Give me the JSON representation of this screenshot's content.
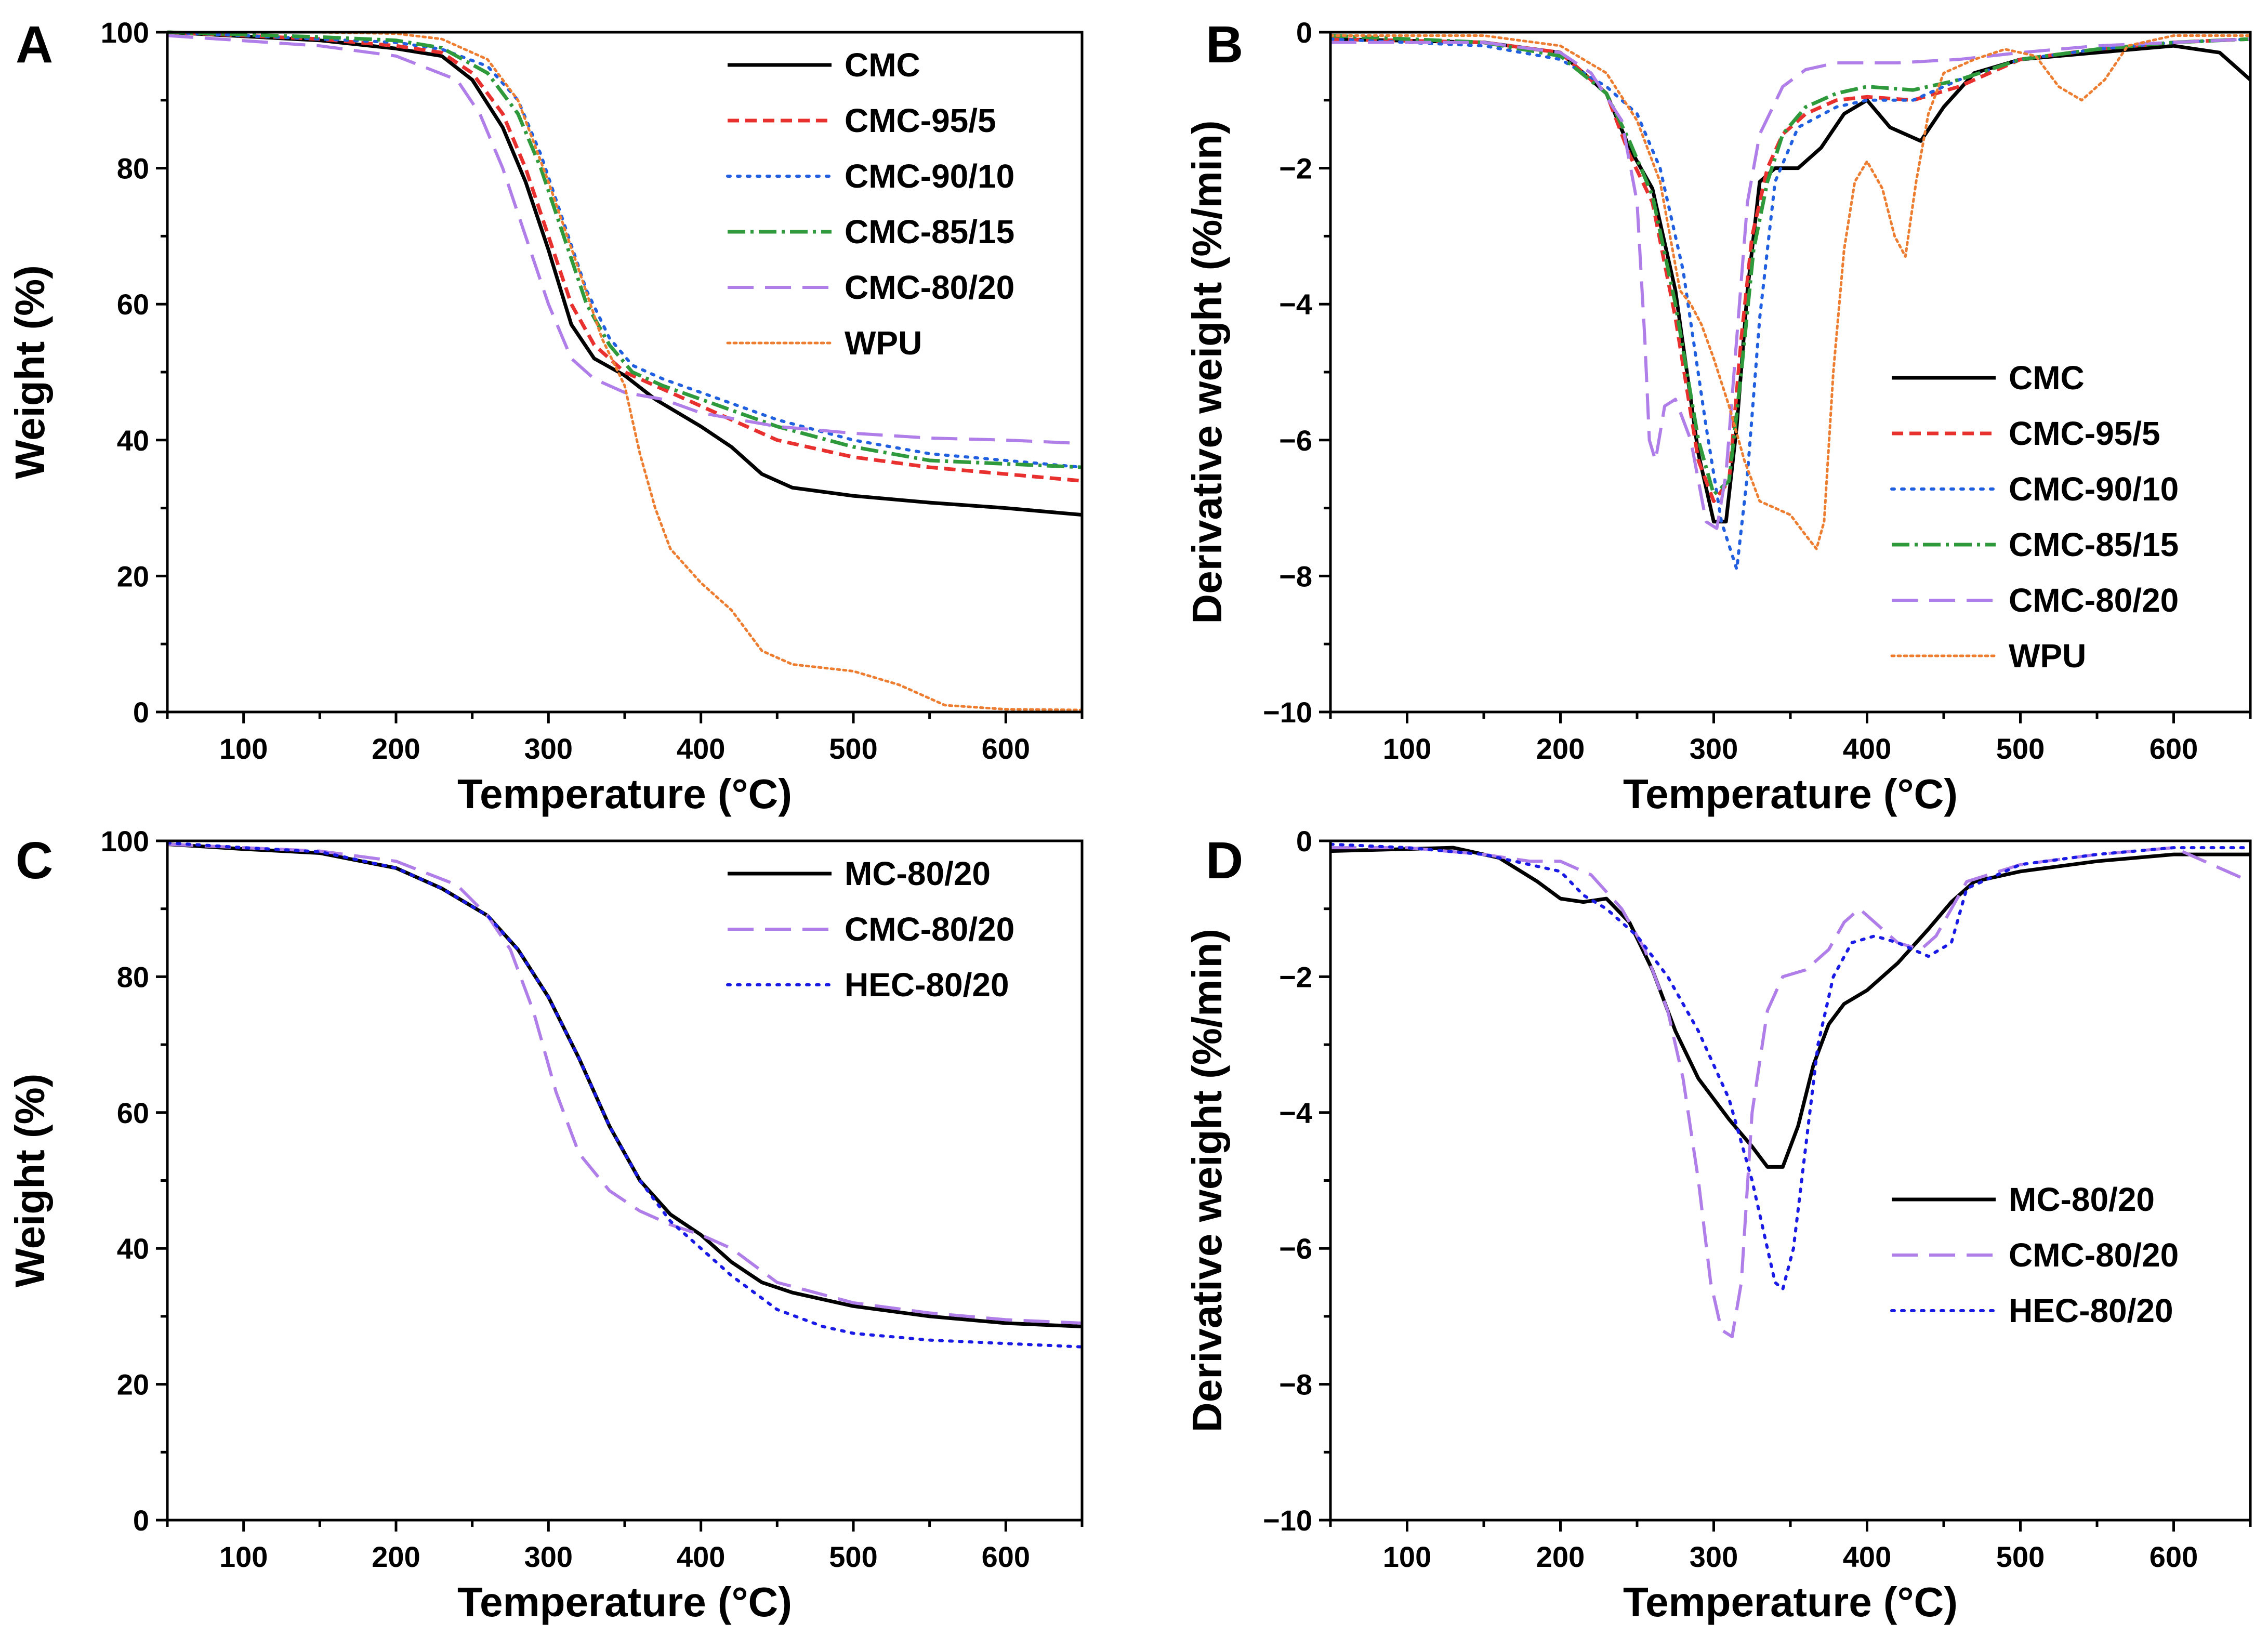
{
  "figure": {
    "colors": {
      "CMC": "#000000",
      "MC": "#000000",
      "CMC-95/5": "#e8302e",
      "CMC-90/10": "#1f5fe0",
      "CMC-85/15": "#2e9a3c",
      "CMC-80/20": "#b07ee8",
      "WPU": "#ed7d31",
      "HEC": "#1a1ae6"
    }
  },
  "chart_data": [
    {
      "panel": "A",
      "type": "line",
      "xlabel": "Temperature (°C)",
      "ylabel": "Weight (%)",
      "xlim": [
        50,
        650
      ],
      "ylim": [
        0,
        100
      ],
      "xticks": [
        100,
        200,
        300,
        400,
        500,
        600
      ],
      "yticks": [
        0,
        20,
        40,
        60,
        80,
        100
      ],
      "legend_position": "top-right",
      "series": [
        {
          "name": "CMC",
          "style": "solid",
          "color": "#000000",
          "x": [
            50,
            150,
            200,
            230,
            250,
            270,
            285,
            300,
            315,
            330,
            350,
            370,
            400,
            420,
            440,
            460,
            500,
            550,
            600,
            650
          ],
          "y": [
            100,
            98.8,
            97.6,
            96.5,
            93,
            86,
            78,
            68,
            57,
            52,
            49.5,
            46,
            42,
            39,
            35,
            33,
            31.8,
            30.8,
            30,
            29
          ]
        },
        {
          "name": "CMC-95/5",
          "style": "dashed",
          "color": "#e8302e",
          "x": [
            50,
            150,
            200,
            230,
            250,
            270,
            285,
            300,
            315,
            330,
            350,
            370,
            400,
            450,
            500,
            550,
            600,
            650
          ],
          "y": [
            100,
            99,
            98,
            97,
            94,
            88,
            80,
            70,
            60,
            54,
            50,
            48,
            45,
            40,
            37.5,
            36,
            35,
            34
          ]
        },
        {
          "name": "CMC-90/10",
          "style": "dotted",
          "color": "#1f5fe0",
          "x": [
            50,
            150,
            200,
            230,
            260,
            280,
            295,
            310,
            325,
            340,
            355,
            375,
            400,
            450,
            500,
            550,
            600,
            650
          ],
          "y": [
            100,
            99,
            98.5,
            97.5,
            95,
            90,
            82,
            72,
            62,
            55,
            51,
            49,
            47,
            43,
            40,
            38,
            37,
            36
          ]
        },
        {
          "name": "CMC-85/15",
          "style": "dashdot",
          "color": "#2e9a3c",
          "x": [
            50,
            150,
            200,
            230,
            260,
            280,
            295,
            310,
            325,
            340,
            355,
            375,
            400,
            450,
            500,
            550,
            600,
            650
          ],
          "y": [
            100,
            99.3,
            98.8,
            97.7,
            94,
            88,
            80,
            70,
            60,
            54,
            50,
            48,
            46,
            42,
            39,
            37,
            36.5,
            36
          ]
        },
        {
          "name": "CMC-80/20",
          "style": "longdash",
          "color": "#b07ee8",
          "x": [
            50,
            150,
            200,
            240,
            255,
            270,
            285,
            300,
            315,
            330,
            350,
            375,
            400,
            450,
            500,
            550,
            600,
            650
          ],
          "y": [
            99.5,
            98,
            96.5,
            93,
            88,
            80,
            70,
            60,
            52,
            49,
            47,
            46,
            44,
            42,
            41,
            40.3,
            40,
            39.5
          ]
        },
        {
          "name": "WPU",
          "style": "densedot",
          "color": "#ed7d31",
          "x": [
            50,
            150,
            200,
            230,
            260,
            280,
            300,
            320,
            335,
            350,
            360,
            370,
            380,
            400,
            420,
            440,
            460,
            500,
            530,
            560,
            600,
            650
          ],
          "y": [
            100,
            100,
            99.8,
            99,
            96,
            90,
            78,
            65,
            55,
            48,
            38,
            30,
            24,
            19,
            15,
            9,
            7,
            6,
            4,
            1,
            0.4,
            0.3
          ]
        }
      ]
    },
    {
      "panel": "B",
      "type": "line",
      "xlabel": "Temperature (°C)",
      "ylabel": "Derivative weight (%/min)",
      "xlim": [
        50,
        650
      ],
      "ylim": [
        -10,
        0
      ],
      "xticks": [
        100,
        200,
        300,
        400,
        500,
        600
      ],
      "yticks": [
        -10,
        -8,
        -6,
        -4,
        -2,
        0
      ],
      "legend_position": "lower-right",
      "series": [
        {
          "name": "CMC",
          "style": "solid",
          "color": "#000000",
          "x": [
            50,
            150,
            200,
            230,
            245,
            260,
            275,
            290,
            300,
            308,
            315,
            322,
            330,
            340,
            355,
            370,
            385,
            400,
            415,
            435,
            450,
            470,
            500,
            550,
            600,
            630,
            650
          ],
          "y": [
            -0.1,
            -0.15,
            -0.3,
            -0.9,
            -1.7,
            -2.3,
            -3.8,
            -6.2,
            -7.2,
            -7.2,
            -5.8,
            -3.8,
            -2.2,
            -2.0,
            -2.0,
            -1.7,
            -1.2,
            -1.0,
            -1.4,
            -1.6,
            -1.1,
            -0.6,
            -0.4,
            -0.3,
            -0.2,
            -0.3,
            -0.7
          ]
        },
        {
          "name": "CMC-95/5",
          "style": "dashed",
          "color": "#e8302e",
          "x": [
            50,
            150,
            200,
            230,
            245,
            260,
            275,
            290,
            300,
            310,
            318,
            325,
            335,
            345,
            360,
            380,
            400,
            430,
            460,
            500,
            550,
            600,
            650
          ],
          "y": [
            -0.1,
            -0.15,
            -0.3,
            -0.9,
            -1.8,
            -2.5,
            -4.2,
            -6.3,
            -6.9,
            -6.6,
            -4.5,
            -3.0,
            -2.0,
            -1.5,
            -1.2,
            -1.0,
            -0.95,
            -1.0,
            -0.8,
            -0.4,
            -0.25,
            -0.15,
            -0.1
          ]
        },
        {
          "name": "CMC-90/10",
          "style": "dotted",
          "color": "#1f5fe0",
          "x": [
            50,
            150,
            200,
            230,
            250,
            265,
            280,
            295,
            305,
            315,
            322,
            330,
            340,
            355,
            380,
            400,
            430,
            460,
            500,
            550,
            600,
            650
          ],
          "y": [
            -0.1,
            -0.2,
            -0.4,
            -0.8,
            -1.2,
            -2.0,
            -3.5,
            -5.8,
            -7.2,
            -7.9,
            -6.5,
            -4.2,
            -2.2,
            -1.4,
            -1.1,
            -1.0,
            -1.0,
            -0.7,
            -0.4,
            -0.25,
            -0.15,
            -0.1
          ]
        },
        {
          "name": "CMC-85/15",
          "style": "dashdot",
          "color": "#2e9a3c",
          "x": [
            50,
            150,
            200,
            230,
            245,
            260,
            275,
            290,
            300,
            310,
            318,
            326,
            335,
            345,
            360,
            380,
            400,
            430,
            460,
            500,
            550,
            600,
            650
          ],
          "y": [
            -0.05,
            -0.15,
            -0.35,
            -0.9,
            -1.6,
            -2.4,
            -4.0,
            -6.0,
            -6.8,
            -6.6,
            -5.0,
            -3.2,
            -2.2,
            -1.5,
            -1.1,
            -0.9,
            -0.8,
            -0.85,
            -0.7,
            -0.4,
            -0.25,
            -0.15,
            -0.1
          ]
        },
        {
          "name": "CMC-80/20",
          "style": "longdash",
          "color": "#b07ee8",
          "x": [
            50,
            150,
            200,
            220,
            240,
            250,
            255,
            258,
            262,
            268,
            275,
            285,
            295,
            302,
            308,
            315,
            322,
            330,
            345,
            360,
            380,
            420,
            460,
            500,
            550,
            600,
            650
          ],
          "y": [
            -0.15,
            -0.15,
            -0.3,
            -0.6,
            -1.3,
            -2.5,
            -4.5,
            -6.0,
            -6.3,
            -5.5,
            -5.4,
            -6.0,
            -7.2,
            -7.3,
            -6.5,
            -4.5,
            -2.5,
            -1.5,
            -0.8,
            -0.55,
            -0.45,
            -0.45,
            -0.4,
            -0.3,
            -0.2,
            -0.15,
            -0.1
          ]
        },
        {
          "name": "WPU",
          "style": "densedot",
          "color": "#ed7d31",
          "x": [
            50,
            150,
            200,
            230,
            250,
            265,
            278,
            285,
            292,
            300,
            310,
            320,
            330,
            340,
            350,
            360,
            367,
            372,
            378,
            385,
            392,
            400,
            410,
            418,
            425,
            432,
            440,
            450,
            470,
            490,
            510,
            525,
            540,
            555,
            570,
            600,
            650
          ],
          "y": [
            -0.05,
            -0.05,
            -0.2,
            -0.6,
            -1.3,
            -2.2,
            -3.8,
            -4.0,
            -4.3,
            -4.8,
            -5.5,
            -6.3,
            -6.9,
            -7.0,
            -7.1,
            -7.4,
            -7.6,
            -7.2,
            -5.0,
            -3.2,
            -2.2,
            -1.9,
            -2.3,
            -3.0,
            -3.3,
            -2.2,
            -1.2,
            -0.6,
            -0.4,
            -0.25,
            -0.35,
            -0.8,
            -1.0,
            -0.7,
            -0.2,
            -0.05,
            -0.05
          ]
        }
      ]
    },
    {
      "panel": "C",
      "type": "line",
      "xlabel": "Temperature (°C)",
      "ylabel": "Weight (%)",
      "xlim": [
        50,
        650
      ],
      "ylim": [
        0,
        100
      ],
      "xticks": [
        100,
        200,
        300,
        400,
        500,
        600
      ],
      "yticks": [
        0,
        20,
        40,
        60,
        80,
        100
      ],
      "legend_position": "top-right",
      "series": [
        {
          "name": "MC-80/20",
          "style": "solid",
          "color": "#000000",
          "x": [
            50,
            100,
            150,
            200,
            230,
            260,
            280,
            300,
            320,
            340,
            360,
            380,
            400,
            420,
            440,
            460,
            500,
            550,
            600,
            650
          ],
          "y": [
            99.5,
            98.8,
            98.2,
            96,
            93,
            89,
            84,
            77,
            68,
            58,
            50,
            45,
            42,
            38,
            35,
            33.5,
            31.5,
            30,
            29,
            28.5
          ]
        },
        {
          "name": "CMC-80/20",
          "style": "longdash",
          "color": "#b07ee8",
          "x": [
            50,
            100,
            150,
            200,
            240,
            260,
            275,
            290,
            305,
            320,
            340,
            360,
            380,
            400,
            420,
            450,
            500,
            550,
            600,
            650
          ],
          "y": [
            99.5,
            99,
            98.5,
            97,
            93.5,
            89,
            84,
            75,
            63,
            54,
            48.5,
            45.5,
            43.5,
            42,
            40,
            35,
            32,
            30.5,
            29.5,
            29
          ]
        },
        {
          "name": "HEC-80/20",
          "style": "dotted",
          "color": "#1a1ae6",
          "x": [
            50,
            100,
            150,
            200,
            230,
            260,
            280,
            300,
            320,
            340,
            360,
            380,
            400,
            420,
            450,
            480,
            500,
            550,
            600,
            650
          ],
          "y": [
            99.7,
            99,
            98.4,
            96,
            93,
            89,
            84,
            77,
            68,
            58,
            50,
            44,
            40,
            36,
            31,
            28.5,
            27.5,
            26.5,
            26,
            25.5
          ]
        }
      ]
    },
    {
      "panel": "D",
      "type": "line",
      "xlabel": "Temperature (°C)",
      "ylabel": "Derivative weight (%/min)",
      "xlim": [
        50,
        650
      ],
      "ylim": [
        -10,
        0
      ],
      "xticks": [
        100,
        200,
        300,
        400,
        500,
        600
      ],
      "yticks": [
        -10,
        -8,
        -6,
        -4,
        -2,
        0
      ],
      "legend_position": "lower-right",
      "series": [
        {
          "name": "MC-80/20",
          "style": "solid",
          "color": "#000000",
          "x": [
            50,
            100,
            130,
            160,
            185,
            200,
            215,
            230,
            245,
            260,
            275,
            290,
            310,
            325,
            335,
            345,
            355,
            365,
            375,
            385,
            400,
            420,
            440,
            455,
            470,
            500,
            550,
            600,
            650
          ],
          "y": [
            -0.15,
            -0.12,
            -0.1,
            -0.25,
            -0.6,
            -0.85,
            -0.9,
            -0.85,
            -1.2,
            -1.9,
            -2.8,
            -3.5,
            -4.1,
            -4.5,
            -4.8,
            -4.8,
            -4.2,
            -3.3,
            -2.7,
            -2.4,
            -2.2,
            -1.8,
            -1.3,
            -0.9,
            -0.6,
            -0.45,
            -0.3,
            -0.2,
            -0.2
          ]
        },
        {
          "name": "CMC-80/20",
          "style": "longdash",
          "color": "#b07ee8",
          "x": [
            50,
            100,
            150,
            180,
            200,
            220,
            240,
            255,
            270,
            280,
            290,
            298,
            305,
            312,
            318,
            325,
            335,
            345,
            360,
            375,
            385,
            395,
            405,
            420,
            435,
            445,
            455,
            465,
            500,
            550,
            600,
            650
          ],
          "y": [
            -0.1,
            -0.1,
            -0.2,
            -0.3,
            -0.3,
            -0.5,
            -1.0,
            -1.6,
            -2.5,
            -3.5,
            -5.0,
            -6.5,
            -7.2,
            -7.3,
            -6.5,
            -4.0,
            -2.5,
            -2.0,
            -1.9,
            -1.6,
            -1.2,
            -1.0,
            -1.2,
            -1.5,
            -1.6,
            -1.4,
            -1.0,
            -0.6,
            -0.35,
            -0.2,
            -0.1,
            -0.6
          ]
        },
        {
          "name": "HEC-80/20",
          "style": "dotted",
          "color": "#1a1ae6",
          "x": [
            50,
            100,
            150,
            200,
            215,
            230,
            250,
            270,
            290,
            310,
            325,
            335,
            340,
            345,
            352,
            360,
            368,
            378,
            390,
            405,
            420,
            440,
            455,
            465,
            500,
            550,
            600,
            650
          ],
          "y": [
            -0.05,
            -0.1,
            -0.2,
            -0.45,
            -0.8,
            -1.0,
            -1.4,
            -2.0,
            -2.8,
            -3.8,
            -5.0,
            -6.0,
            -6.5,
            -6.6,
            -6.0,
            -4.5,
            -3.0,
            -2.0,
            -1.5,
            -1.4,
            -1.5,
            -1.7,
            -1.5,
            -0.7,
            -0.35,
            -0.2,
            -0.1,
            -0.1
          ]
        }
      ]
    }
  ]
}
